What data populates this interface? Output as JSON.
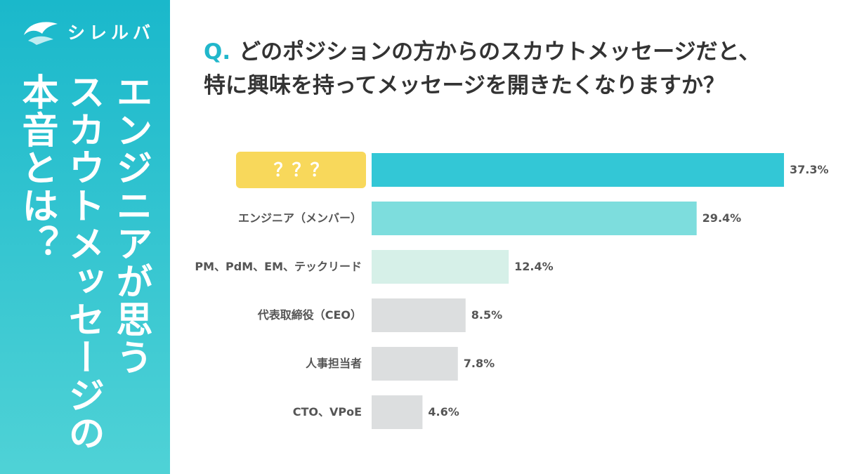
{
  "brand": {
    "logo_text": "シレルバ"
  },
  "sidebar": {
    "heading_lines": [
      "エンジニアが思う",
      "スカウトメッセージの",
      "本音とは？"
    ]
  },
  "question": {
    "prefix": "Q.",
    "lines": [
      "どのポジションの方からのスカウトメッセージだと、",
      "特に興味を持ってメッセージを開きたくなりますか？"
    ]
  },
  "colors": {
    "accent": "#21b7cb",
    "bar_top": "#33c7d6",
    "bar_second": "#7ddddd",
    "bar_third": "#d6f0e8",
    "bar_rest": "#dcdedf",
    "highlight": "#f8d85b"
  },
  "chart_data": {
    "type": "bar",
    "orientation": "horizontal",
    "categories": [
      "？？？",
      "エンジニア（メンバー）",
      "PM、PdM、EM、テックリード",
      "代表取締役（CEO）",
      "人事担当者",
      "CTO、VPoE"
    ],
    "values": [
      37.3,
      29.4,
      12.4,
      8.5,
      7.8,
      4.6
    ],
    "value_labels": [
      "37.3%",
      "29.4%",
      "12.4%",
      "8.5%",
      "7.8%",
      "4.6%"
    ],
    "xlim": [
      0,
      37.3
    ],
    "grid": false
  }
}
